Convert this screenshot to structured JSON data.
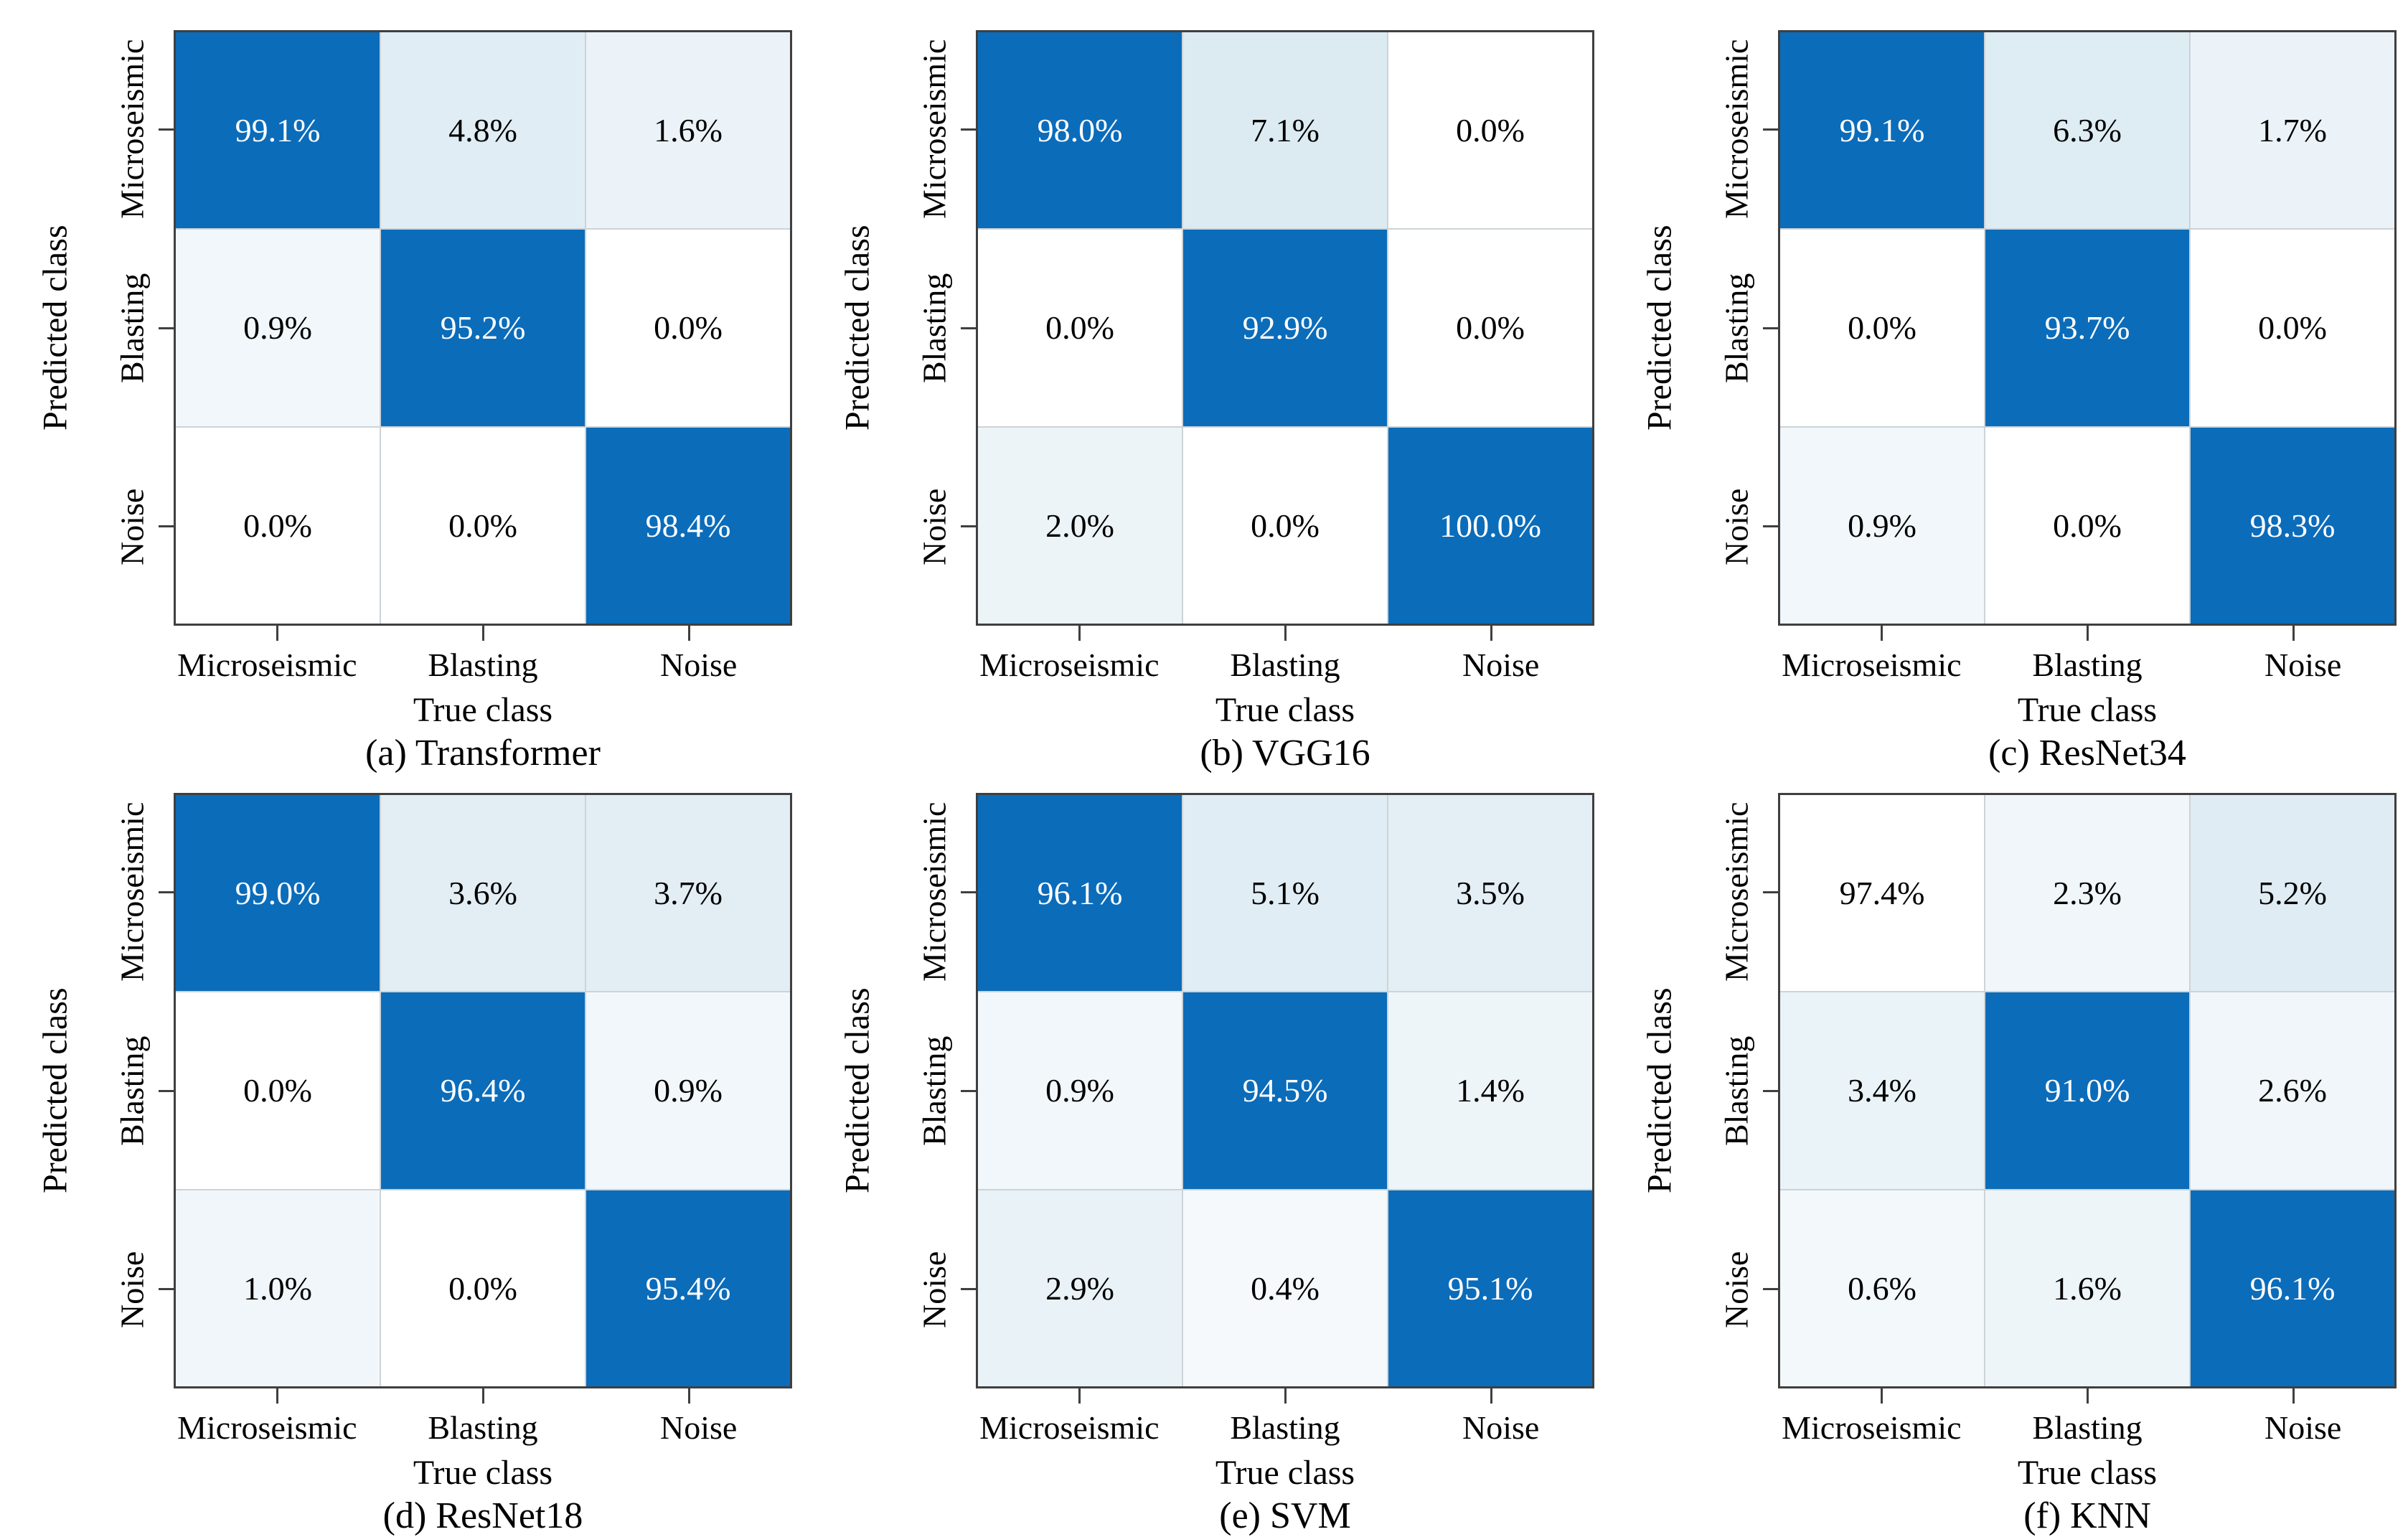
{
  "figure": {
    "type": "confusion-matrix-comparison",
    "x_axis_title": "True class",
    "y_axis_title": "Predicted class",
    "classes": [
      "Microseismic",
      "Blasting",
      "Noise"
    ]
  },
  "colors": {
    "diagonal_blue": "#0b6cba",
    "axis_border": "#3f3f3f",
    "gridline": "#cdd3d7",
    "text_dark": "#000000",
    "text_light": "#ffffff"
  },
  "chart_data": [
    {
      "type": "heatmap",
      "caption": "(a) Transformer",
      "xlabel": "True class",
      "ylabel": "Predicted class",
      "x_categories": [
        "Microseismic",
        "Blasting",
        "Noise"
      ],
      "y_categories": [
        "Microseismic",
        "Blasting",
        "Noise"
      ],
      "values_percent_rows": [
        [
          99.1,
          4.8,
          1.6
        ],
        [
          0.9,
          95.2,
          0.0
        ],
        [
          0.0,
          0.0,
          98.4
        ]
      ],
      "cells": [
        {
          "label": "99.1%",
          "bg": "#0b6cba",
          "fg": "#ffffff"
        },
        {
          "label": "4.8%",
          "bg": "#e0edf4",
          "fg": "#000000"
        },
        {
          "label": "1.6%",
          "bg": "#ebf3f8",
          "fg": "#000000"
        },
        {
          "label": "0.9%",
          "bg": "#f1f7fa",
          "fg": "#000000"
        },
        {
          "label": "95.2%",
          "bg": "#0b6cba",
          "fg": "#ffffff"
        },
        {
          "label": "0.0%",
          "bg": "#ffffff",
          "fg": "#000000"
        },
        {
          "label": "0.0%",
          "bg": "#ffffff",
          "fg": "#000000"
        },
        {
          "label": "0.0%",
          "bg": "#ffffff",
          "fg": "#000000"
        },
        {
          "label": "98.4%",
          "bg": "#0b6cba",
          "fg": "#ffffff"
        }
      ]
    },
    {
      "type": "heatmap",
      "caption": "(b) VGG16",
      "xlabel": "True class",
      "ylabel": "Predicted class",
      "x_categories": [
        "Microseismic",
        "Blasting",
        "Noise"
      ],
      "y_categories": [
        "Microseismic",
        "Blasting",
        "Noise"
      ],
      "values_percent_rows": [
        [
          98.0,
          7.1,
          0.0
        ],
        [
          0.0,
          92.9,
          0.0
        ],
        [
          2.0,
          0.0,
          100.0
        ]
      ],
      "cells": [
        {
          "label": "98.0%",
          "bg": "#0b6cba",
          "fg": "#ffffff"
        },
        {
          "label": "7.1%",
          "bg": "#dcebf2",
          "fg": "#000000"
        },
        {
          "label": "0.0%",
          "bg": "#ffffff",
          "fg": "#000000"
        },
        {
          "label": "0.0%",
          "bg": "#ffffff",
          "fg": "#000000"
        },
        {
          "label": "92.9%",
          "bg": "#0b6cba",
          "fg": "#ffffff"
        },
        {
          "label": "0.0%",
          "bg": "#ffffff",
          "fg": "#000000"
        },
        {
          "label": "2.0%",
          "bg": "#edf4f8",
          "fg": "#000000"
        },
        {
          "label": "0.0%",
          "bg": "#ffffff",
          "fg": "#000000"
        },
        {
          "label": "100.0%",
          "bg": "#0b6cba",
          "fg": "#ffffff"
        }
      ]
    },
    {
      "type": "heatmap",
      "caption": "(c) ResNet34",
      "xlabel": "True class",
      "ylabel": "Predicted class",
      "x_categories": [
        "Microseismic",
        "Blasting",
        "Noise"
      ],
      "y_categories": [
        "Microseismic",
        "Blasting",
        "Noise"
      ],
      "values_percent_rows": [
        [
          99.1,
          6.3,
          1.7
        ],
        [
          0.0,
          93.7,
          0.0
        ],
        [
          0.9,
          0.0,
          98.3
        ]
      ],
      "cells": [
        {
          "label": "99.1%",
          "bg": "#0b6cba",
          "fg": "#ffffff"
        },
        {
          "label": "6.3%",
          "bg": "#deecf3",
          "fg": "#000000"
        },
        {
          "label": "1.7%",
          "bg": "#ebf3f8",
          "fg": "#000000"
        },
        {
          "label": "0.0%",
          "bg": "#ffffff",
          "fg": "#000000"
        },
        {
          "label": "93.7%",
          "bg": "#0b6cba",
          "fg": "#ffffff"
        },
        {
          "label": "0.0%",
          "bg": "#ffffff",
          "fg": "#000000"
        },
        {
          "label": "0.9%",
          "bg": "#f1f7fa",
          "fg": "#000000"
        },
        {
          "label": "0.0%",
          "bg": "#ffffff",
          "fg": "#000000"
        },
        {
          "label": "98.3%",
          "bg": "#0b6cba",
          "fg": "#ffffff"
        }
      ]
    },
    {
      "type": "heatmap",
      "caption": "(d) ResNet18",
      "xlabel": "True class",
      "ylabel": "Predicted class",
      "x_categories": [
        "Microseismic",
        "Blasting",
        "Noise"
      ],
      "y_categories": [
        "Microseismic",
        "Blasting",
        "Noise"
      ],
      "values_percent_rows": [
        [
          99.0,
          3.6,
          3.7
        ],
        [
          0.0,
          96.4,
          0.9
        ],
        [
          1.0,
          0.0,
          95.4
        ]
      ],
      "cells": [
        {
          "label": "99.0%",
          "bg": "#0b6cba",
          "fg": "#ffffff"
        },
        {
          "label": "3.6%",
          "bg": "#e3eef4",
          "fg": "#000000"
        },
        {
          "label": "3.7%",
          "bg": "#e3eef4",
          "fg": "#000000"
        },
        {
          "label": "0.0%",
          "bg": "#ffffff",
          "fg": "#000000"
        },
        {
          "label": "96.4%",
          "bg": "#0b6cba",
          "fg": "#ffffff"
        },
        {
          "label": "0.9%",
          "bg": "#f1f7fa",
          "fg": "#000000"
        },
        {
          "label": "1.0%",
          "bg": "#f0f6f9",
          "fg": "#000000"
        },
        {
          "label": "0.0%",
          "bg": "#ffffff",
          "fg": "#000000"
        },
        {
          "label": "95.4%",
          "bg": "#0b6cba",
          "fg": "#ffffff"
        }
      ]
    },
    {
      "type": "heatmap",
      "caption": "(e) SVM",
      "xlabel": "True class",
      "ylabel": "Predicted class",
      "x_categories": [
        "Microseismic",
        "Blasting",
        "Noise"
      ],
      "y_categories": [
        "Microseismic",
        "Blasting",
        "Noise"
      ],
      "values_percent_rows": [
        [
          96.1,
          5.1,
          3.5
        ],
        [
          0.9,
          94.5,
          1.4
        ],
        [
          2.9,
          0.4,
          95.1
        ]
      ],
      "cells": [
        {
          "label": "96.1%",
          "bg": "#0b6cba",
          "fg": "#ffffff"
        },
        {
          "label": "5.1%",
          "bg": "#e0edf4",
          "fg": "#000000"
        },
        {
          "label": "3.5%",
          "bg": "#e4eff5",
          "fg": "#000000"
        },
        {
          "label": "0.9%",
          "bg": "#f1f7fa",
          "fg": "#000000"
        },
        {
          "label": "94.5%",
          "bg": "#0b6cba",
          "fg": "#ffffff"
        },
        {
          "label": "1.4%",
          "bg": "#eef5f8",
          "fg": "#000000"
        },
        {
          "label": "2.9%",
          "bg": "#e9f2f6",
          "fg": "#000000"
        },
        {
          "label": "0.4%",
          "bg": "#f5f9fb",
          "fg": "#000000"
        },
        {
          "label": "95.1%",
          "bg": "#0b6cba",
          "fg": "#ffffff"
        }
      ]
    },
    {
      "type": "heatmap",
      "caption": "(f) KNN",
      "xlabel": "True class",
      "ylabel": "Predicted class",
      "x_categories": [
        "Microseismic",
        "Blasting",
        "Noise"
      ],
      "y_categories": [
        "Microseismic",
        "Blasting",
        "Noise"
      ],
      "values_percent_rows": [
        [
          97.4,
          2.3,
          5.2
        ],
        [
          3.4,
          91.0,
          2.6
        ],
        [
          0.6,
          1.6,
          96.1
        ]
      ],
      "cells": [
        {
          "label": "97.4%",
          "bg": "#ffffff",
          "fg": "#000000"
        },
        {
          "label": "2.3%",
          "bg": "#f0f6f9",
          "fg": "#000000"
        },
        {
          "label": "5.2%",
          "bg": "#dfecf3",
          "fg": "#000000"
        },
        {
          "label": "3.4%",
          "bg": "#eaf3f7",
          "fg": "#000000"
        },
        {
          "label": "91.0%",
          "bg": "#0b6cba",
          "fg": "#ffffff"
        },
        {
          "label": "2.6%",
          "bg": "#f0f6f9",
          "fg": "#000000"
        },
        {
          "label": "0.6%",
          "bg": "#f3f8fa",
          "fg": "#000000"
        },
        {
          "label": "1.6%",
          "bg": "#eef5f8",
          "fg": "#000000"
        },
        {
          "label": "96.1%",
          "bg": "#0b6cba",
          "fg": "#ffffff"
        }
      ]
    }
  ]
}
